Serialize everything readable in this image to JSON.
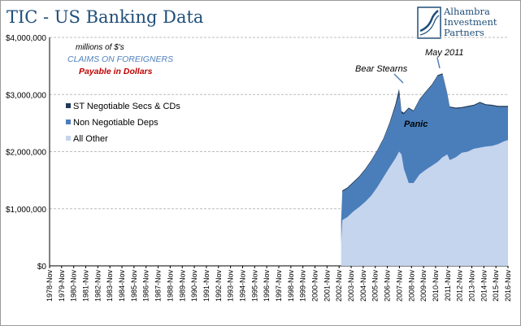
{
  "header": {
    "title": "TIC - US Banking Data"
  },
  "logo": {
    "lines": [
      "Alhambra",
      "Investment",
      "Partners"
    ]
  },
  "colors": {
    "st": "#1f3a5c",
    "nonneg": "#4a7ebb",
    "other": "#c5d5ee",
    "grid": "#bdbdbd",
    "title": "#1f4e79",
    "annot_blue": "#4f81bd",
    "annot_red": "#c00000"
  },
  "chart_data": {
    "type": "area",
    "stacked": true,
    "title": "",
    "xlabel": "",
    "ylabel": "",
    "ylim": [
      0,
      4000000
    ],
    "yticks": [
      {
        "value": 0,
        "label": "$0"
      },
      {
        "value": 1000000,
        "label": "$1,000,000"
      },
      {
        "value": 2000000,
        "label": "$2,000,000"
      },
      {
        "value": 3000000,
        "label": "$3,000,000"
      },
      {
        "value": 4000000,
        "label": "$4,000,000"
      }
    ],
    "xlim": [
      1978.83,
      2016.83
    ],
    "xticks": [
      "1978-Nov",
      "1979-Nov",
      "1980-Nov",
      "1981-Nov",
      "1982-Nov",
      "1983-Nov",
      "1984-Nov",
      "1985-Nov",
      "1986-Nov",
      "1987-Nov",
      "1988-Nov",
      "1989-Nov",
      "1990-Nov",
      "1991-Nov",
      "1992-Nov",
      "1993-Nov",
      "1994-Nov",
      "1995-Nov",
      "1996-Nov",
      "1997-Nov",
      "1998-Nov",
      "1999-Nov",
      "2000-Nov",
      "2001-Nov",
      "2002-Nov",
      "2003-Nov",
      "2004-Nov",
      "2005-Nov",
      "2006-Nov",
      "2007-Nov",
      "2008-Nov",
      "2009-Nov",
      "2010-Nov",
      "2011-Nov",
      "2012-Nov",
      "2013-Nov",
      "2014-Nov",
      "2015-Nov",
      "2016-Nov"
    ],
    "grid": true,
    "legend": "left",
    "annotations": {
      "units": "millions of $'s",
      "claims": "CLAIMS ON FOREIGNERS",
      "payable": "Payable in Dollars",
      "bear": "Bear Stearns",
      "may": "May 2011",
      "panic": "Panic"
    },
    "series": [
      {
        "name": "All Other",
        "x": [
          2003.0,
          2003.1,
          2003.5,
          2004.0,
          2004.5,
          2005.0,
          2005.5,
          2006.0,
          2006.5,
          2007.0,
          2007.5,
          2007.8,
          2008.0,
          2008.2,
          2008.6,
          2009.0,
          2009.5,
          2010.0,
          2010.5,
          2011.0,
          2011.4,
          2011.8,
          2012.0,
          2012.5,
          2013.0,
          2013.5,
          2014.0,
          2014.5,
          2015.0,
          2015.5,
          2016.0,
          2016.5,
          2016.83
        ],
        "values": [
          400000,
          800000,
          850000,
          950000,
          1030000,
          1120000,
          1230000,
          1380000,
          1550000,
          1720000,
          1880000,
          2000000,
          1950000,
          1700000,
          1450000,
          1450000,
          1600000,
          1680000,
          1750000,
          1820000,
          1900000,
          1950000,
          1850000,
          1900000,
          1980000,
          2000000,
          2050000,
          2070000,
          2090000,
          2100000,
          2130000,
          2180000,
          2200000
        ]
      },
      {
        "name": "Non Negotiable Deps",
        "x": [
          2003.0,
          2003.1,
          2003.5,
          2004.0,
          2004.5,
          2005.0,
          2005.5,
          2006.0,
          2006.5,
          2007.0,
          2007.5,
          2007.8,
          2008.0,
          2008.2,
          2008.6,
          2009.0,
          2009.5,
          2010.0,
          2010.5,
          2011.0,
          2011.4,
          2011.8,
          2012.0,
          2012.5,
          2013.0,
          2013.5,
          2014.0,
          2014.5,
          2015.0,
          2015.5,
          2016.0,
          2016.5,
          2016.83
        ],
        "values": [
          400000,
          500000,
          500000,
          500000,
          520000,
          560000,
          600000,
          630000,
          660000,
          750000,
          900000,
          1000000,
          720000,
          950000,
          1300000,
          1250000,
          1300000,
          1350000,
          1400000,
          1500000,
          1450000,
          1050000,
          920000,
          850000,
          780000,
          780000,
          750000,
          780000,
          720000,
          700000,
          650000,
          600000,
          580000
        ]
      },
      {
        "name": "ST Negotiable Secs & CDs",
        "x": [
          2003.0,
          2003.1,
          2003.5,
          2004.0,
          2004.5,
          2005.0,
          2005.5,
          2006.0,
          2006.5,
          2007.0,
          2007.5,
          2007.8,
          2008.0,
          2008.2,
          2008.6,
          2009.0,
          2009.5,
          2010.0,
          2010.5,
          2011.0,
          2011.4,
          2011.8,
          2012.0,
          2012.5,
          2013.0,
          2013.5,
          2014.0,
          2014.5,
          2015.0,
          2015.5,
          2016.0,
          2016.5,
          2016.83
        ],
        "values": [
          0,
          20000,
          20000,
          20000,
          20000,
          20000,
          20000,
          20000,
          20000,
          30000,
          50000,
          100000,
          40000,
          30000,
          20000,
          20000,
          20000,
          20000,
          20000,
          20000,
          20000,
          20000,
          20000,
          20000,
          20000,
          20000,
          20000,
          20000,
          20000,
          20000,
          20000,
          20000,
          20000
        ]
      }
    ]
  }
}
